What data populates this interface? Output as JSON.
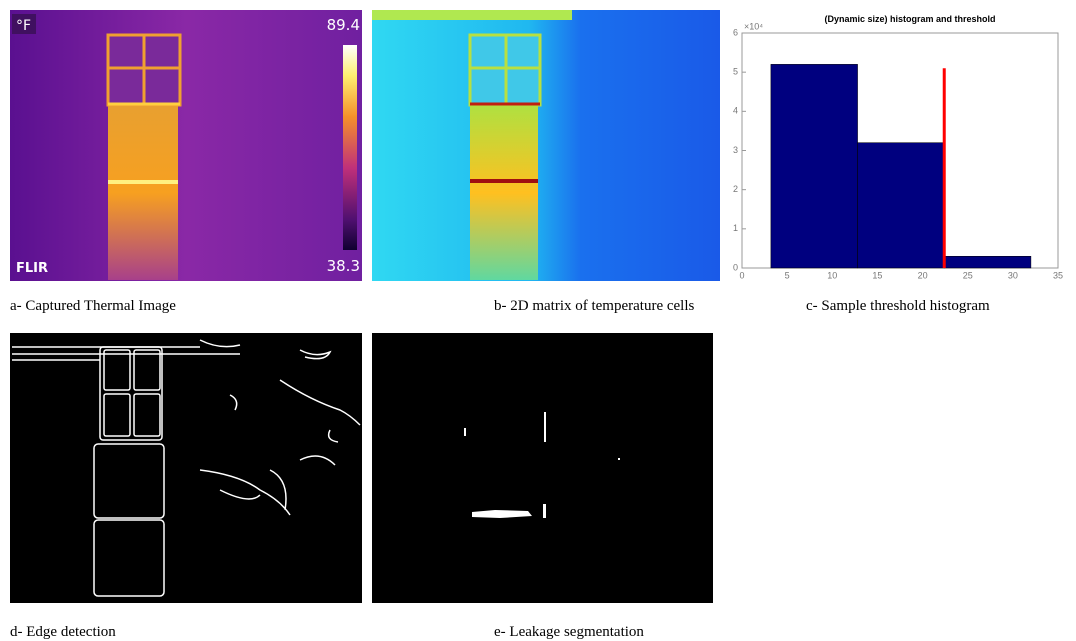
{
  "panels": [
    {
      "caption": "a- Captured Thermal Image",
      "unit": "°F",
      "scale_max": 89.4,
      "scale_min": 38.3,
      "logo": "FLIR"
    },
    {
      "caption": "b- 2D matrix of temperature cells"
    },
    {
      "caption": "c- Sample threshold histogram"
    },
    {
      "caption": "d- Edge detection"
    },
    {
      "caption": "e- Leakage segmentation"
    }
  ],
  "chart_data": {
    "type": "histogram",
    "title": "(Dynamic size) histogram and threshold",
    "y_multiplier": "×10⁴",
    "bins": [
      3.2,
      12.8,
      22.4,
      32
    ],
    "counts": [
      5.2,
      3.2,
      0.3
    ],
    "color": "#00007f",
    "xlim": [
      0,
      35
    ],
    "ylim": [
      0,
      6
    ],
    "xticks": [
      0,
      5,
      10,
      15,
      20,
      25,
      30,
      35
    ],
    "yticks": [
      0,
      1,
      2,
      3,
      4,
      5,
      6
    ],
    "threshold": {
      "x": 22.4,
      "y": 5.1,
      "color": "#ff0000"
    }
  }
}
